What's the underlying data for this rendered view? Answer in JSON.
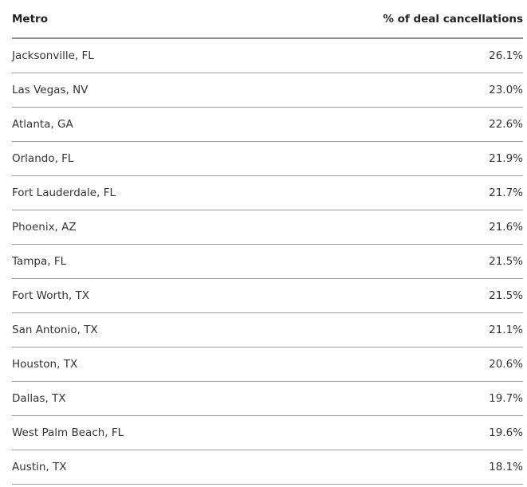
{
  "chart_data": {
    "type": "table",
    "columns": [
      "Metro",
      "% of deal cancellations"
    ],
    "rows": [
      {
        "metro": "Jacksonville, FL",
        "value": "26.1%"
      },
      {
        "metro": "Las Vegas, NV",
        "value": "23.0%"
      },
      {
        "metro": "Atlanta, GA",
        "value": "22.6%"
      },
      {
        "metro": "Orlando, FL",
        "value": "21.9%"
      },
      {
        "metro": "Fort Lauderdale, FL",
        "value": "21.7%"
      },
      {
        "metro": "Phoenix, AZ",
        "value": "21.6%"
      },
      {
        "metro": "Tampa, FL",
        "value": "21.5%"
      },
      {
        "metro": "Fort Worth, TX",
        "value": "21.5%"
      },
      {
        "metro": "San Antonio, TX",
        "value": "21.1%"
      },
      {
        "metro": "Houston, TX",
        "value": "20.6%"
      },
      {
        "metro": "Dallas, TX",
        "value": "19.7%"
      },
      {
        "metro": "West Palm Beach, FL",
        "value": "19.6%"
      },
      {
        "metro": "Austin, TX",
        "value": "18.1%"
      }
    ]
  }
}
